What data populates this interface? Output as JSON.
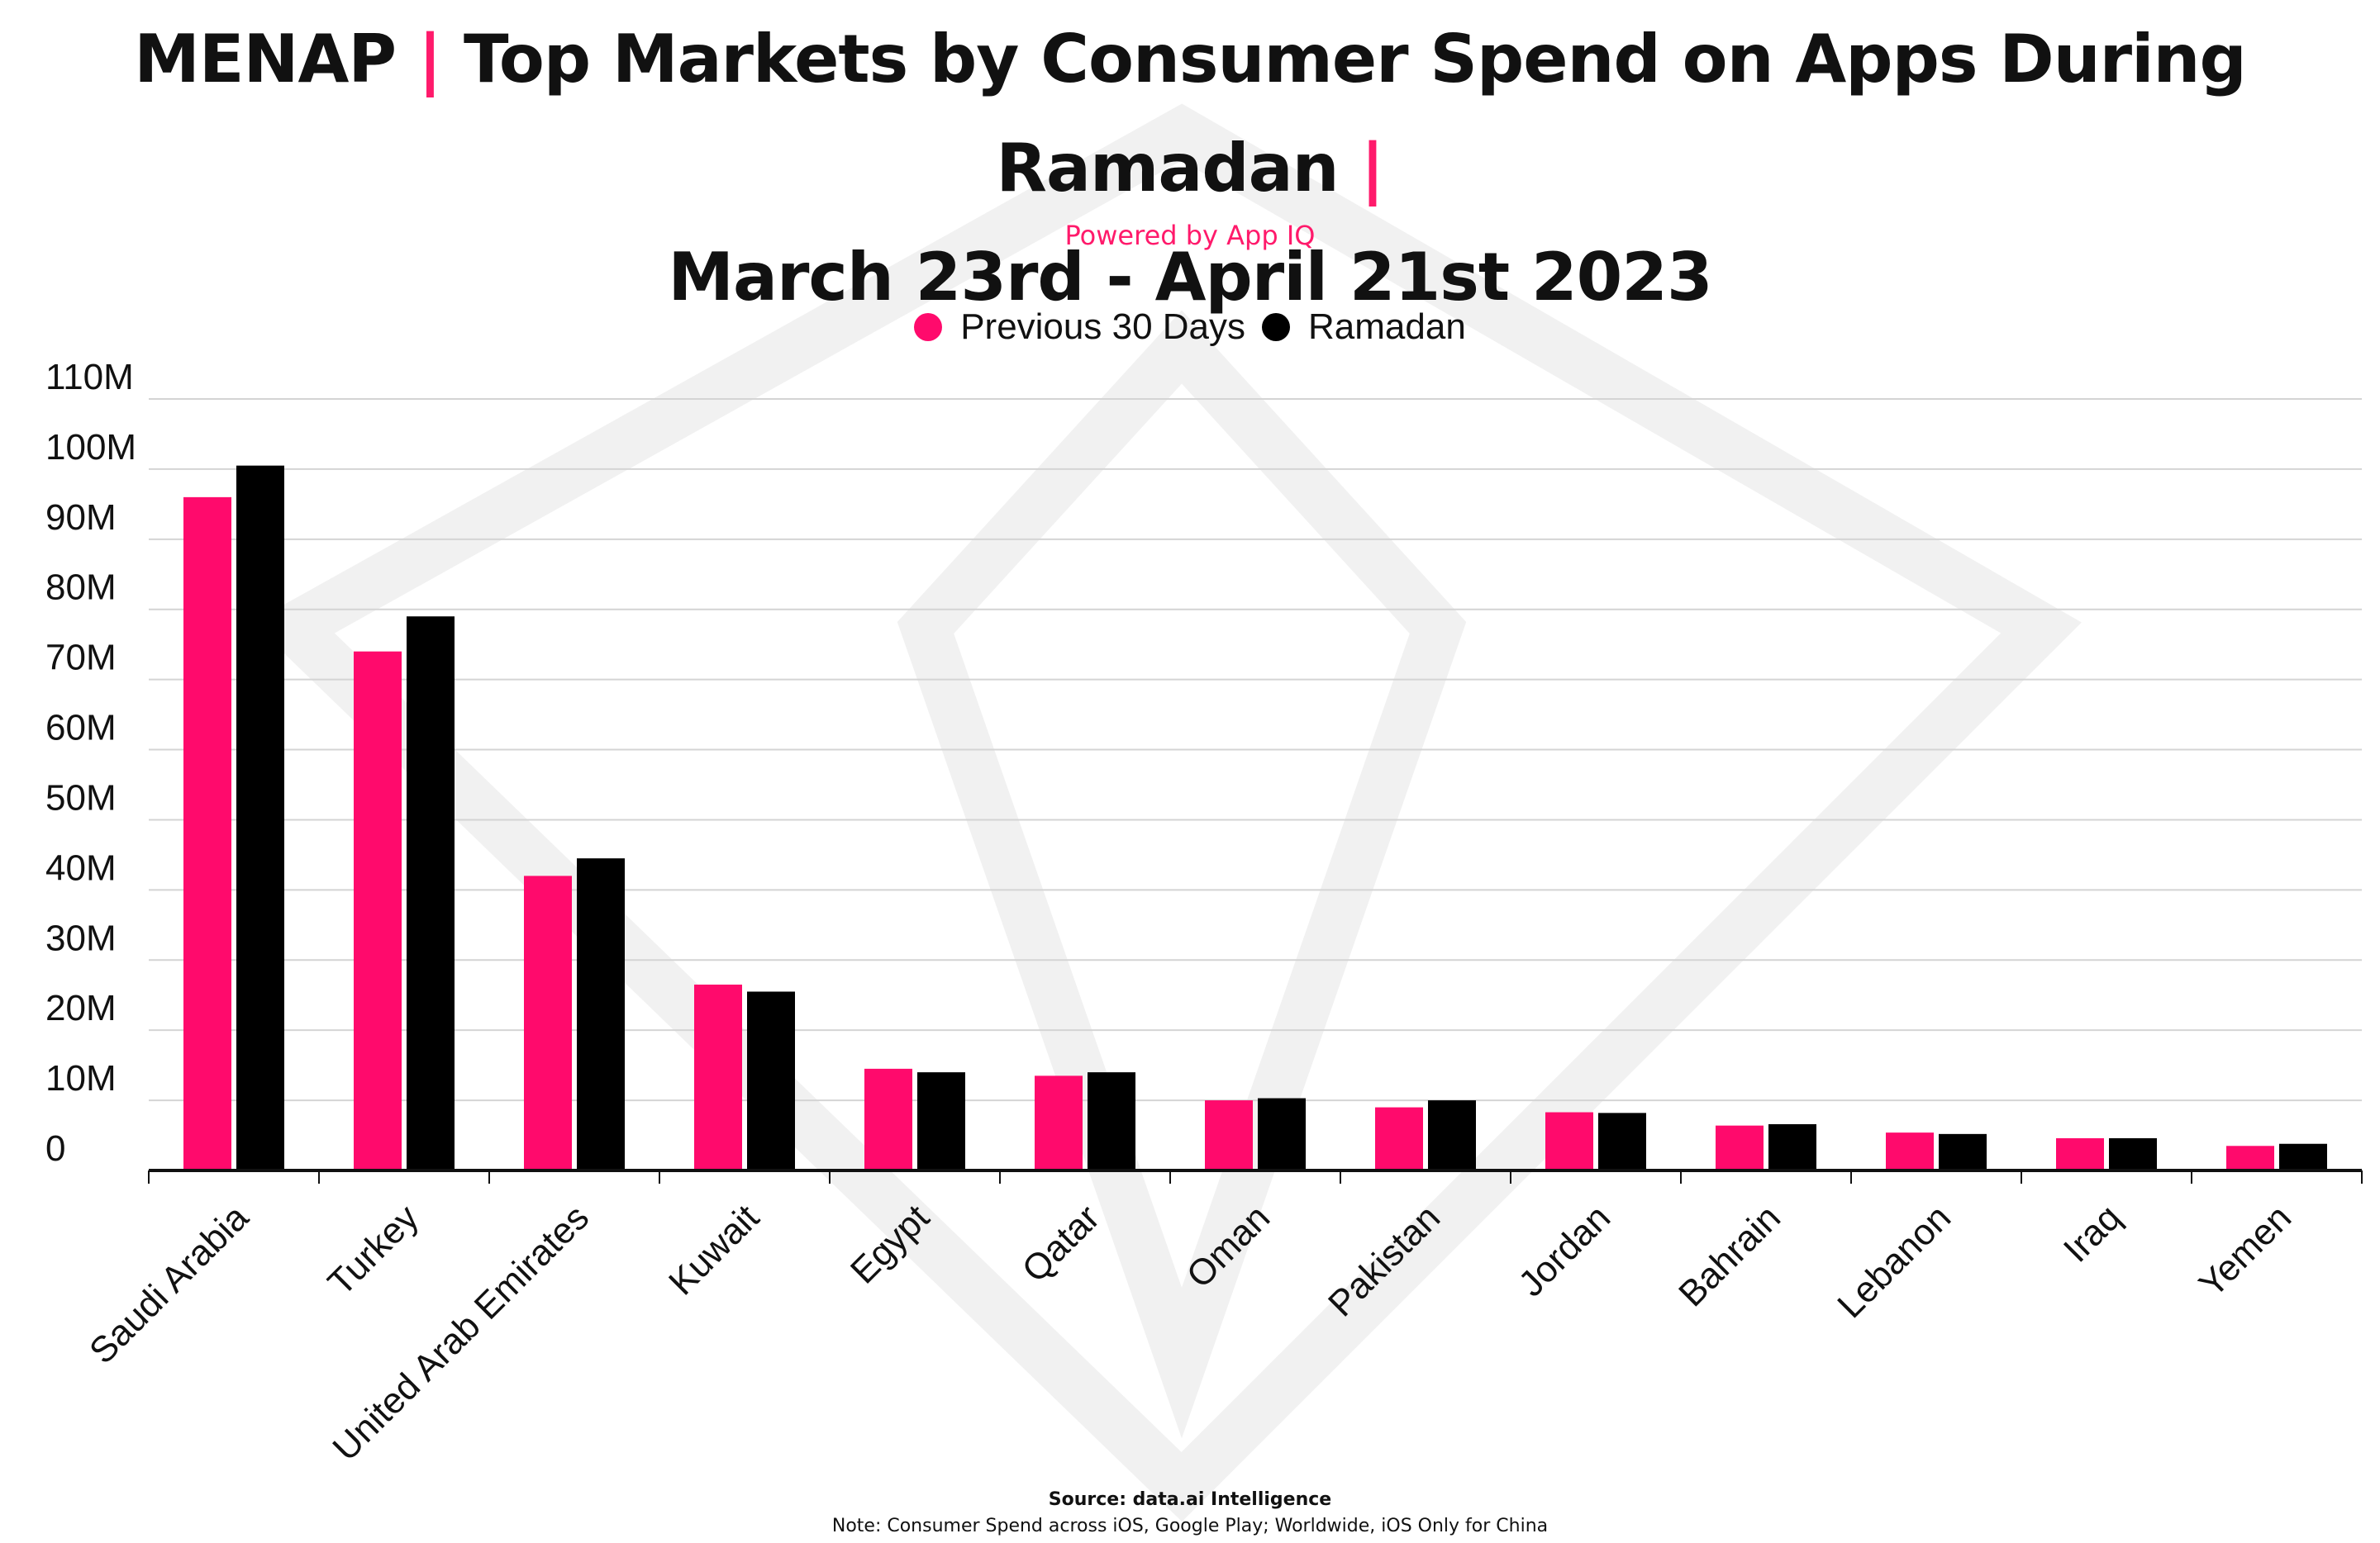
{
  "header": {
    "title_part1": "MENAP",
    "separator": "|",
    "title_part2": "Top Markets by Consumer Spend on Apps During Ramadan",
    "title_line2": "March 23rd - April 21st 2023",
    "subtitle": "Powered by App IQ"
  },
  "legend": [
    {
      "label": "Previous 30 Days",
      "color": "#ff0a6c"
    },
    {
      "label": "Ramadan",
      "color": "#000000"
    }
  ],
  "chart_data": {
    "type": "bar",
    "title": "MENAP | Top Markets by Consumer Spend on Apps During Ramadan | March 23rd - April 21st 2023",
    "xlabel": "",
    "ylabel": "",
    "ylim": [
      0,
      110000000
    ],
    "y_ticks": [
      {
        "value": 0,
        "label": "0"
      },
      {
        "value": 10000000,
        "label": "10M"
      },
      {
        "value": 20000000,
        "label": "20M"
      },
      {
        "value": 30000000,
        "label": "30M"
      },
      {
        "value": 40000000,
        "label": "40M"
      },
      {
        "value": 50000000,
        "label": "50M"
      },
      {
        "value": 60000000,
        "label": "60M"
      },
      {
        "value": 70000000,
        "label": "70M"
      },
      {
        "value": 80000000,
        "label": "80M"
      },
      {
        "value": 90000000,
        "label": "90M"
      },
      {
        "value": 100000000,
        "label": "100M"
      },
      {
        "value": 110000000,
        "label": "110M"
      }
    ],
    "categories": [
      "Saudi Arabia",
      "Turkey",
      "United Arab Emirates",
      "Kuwait",
      "Egypt",
      "Qatar",
      "Oman",
      "Pakistan",
      "Jordan",
      "Bahrain",
      "Lebanon",
      "Iraq",
      "Yemen"
    ],
    "series": [
      {
        "name": "Previous 30 Days",
        "color": "#ff0a6c",
        "values": [
          96000000,
          74000000,
          42000000,
          26500000,
          14500000,
          13500000,
          10000000,
          9000000,
          8300000,
          6400000,
          5400000,
          4600000,
          3500000
        ]
      },
      {
        "name": "Ramadan",
        "color": "#000000",
        "values": [
          100500000,
          79000000,
          44500000,
          25500000,
          14000000,
          14000000,
          10300000,
          10000000,
          8200000,
          6600000,
          5200000,
          4600000,
          3800000
        ]
      }
    ],
    "grid": true,
    "legend_position": "top-center"
  },
  "footer": {
    "source": "Source: data.ai Intelligence",
    "note": "Note: Consumer Spend across iOS, Google Play; Worldwide, iOS Only for China"
  }
}
